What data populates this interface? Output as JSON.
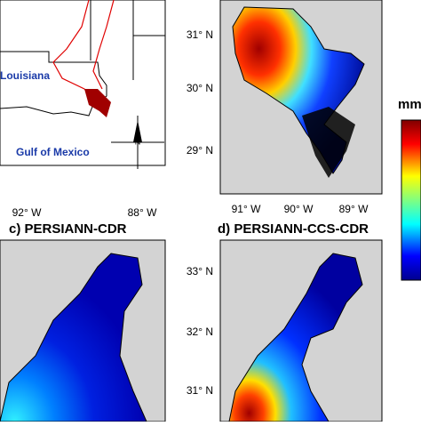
{
  "panel_a": {
    "state_label": "Louisiana",
    "gulf_label": "Gulf of Mexico",
    "compass_label": "N",
    "x_labels": [
      "92° W",
      "88° W"
    ]
  },
  "panel_b": {
    "y_labels": [
      "31° N",
      "30° N",
      "29° N"
    ],
    "x_labels": [
      "91° W",
      "90° W",
      "89° W"
    ]
  },
  "panel_c": {
    "title": "c) PERSIANN-CDR"
  },
  "panel_d": {
    "title": "d) PERSIANN-CCS-CDR",
    "y_labels": [
      "33° N",
      "32° N",
      "31° N"
    ]
  },
  "colorbar": {
    "label": "mm"
  }
}
